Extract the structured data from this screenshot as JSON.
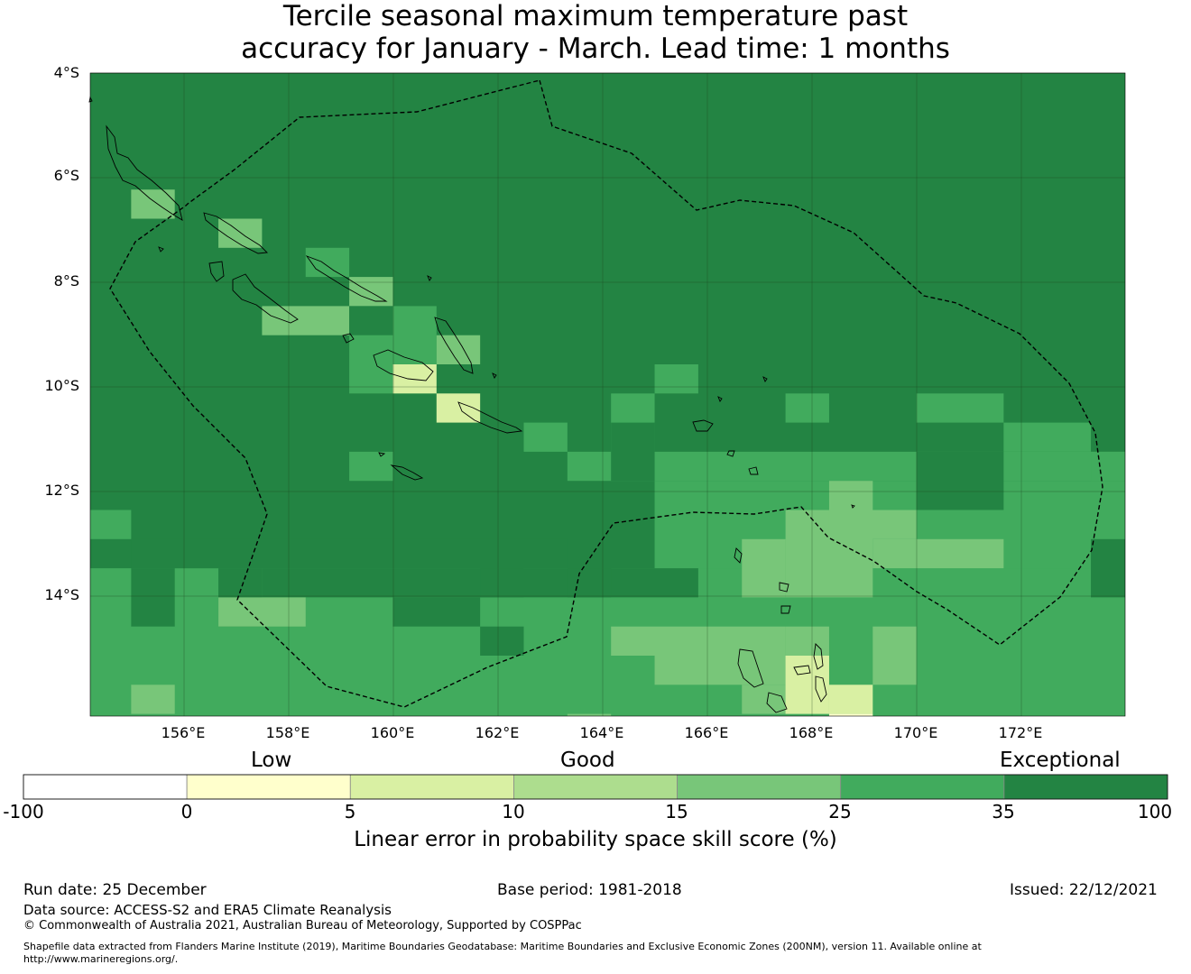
{
  "title": {
    "line1": "Tercile seasonal maximum temperature past",
    "line2": "accuracy for January - March. Lead time: 1 months"
  },
  "map": {
    "lat_labels": [
      "4°S",
      "6°S",
      "8°S",
      "10°S",
      "12°S",
      "14°S"
    ],
    "lon_labels": [
      "156°E",
      "158°E",
      "160°E",
      "162°E",
      "164°E",
      "166°E",
      "168°E",
      "170°E",
      "172°E"
    ],
    "lon_range": [
      154.2,
      174.0
    ],
    "lat_range": [
      -4.0,
      -16.3
    ],
    "colors": {
      "ocean_default": "#238443",
      "land_outline": "#000000",
      "eez_line": "#000000",
      "grid": "#1a3d1a"
    }
  },
  "categories": {
    "low": "Low",
    "good": "Good",
    "exceptional": "Exceptional"
  },
  "colorbar": {
    "ticks": [
      "-100",
      "0",
      "5",
      "10",
      "15",
      "25",
      "35",
      "100"
    ],
    "colors": [
      "#ffffff",
      "#ffffcc",
      "#d9f0a3",
      "#addd8e",
      "#78c679",
      "#41ab5d",
      "#238443"
    ],
    "label": "Linear error in probability space skill score (%)"
  },
  "footer": {
    "run_date": "Run date: 25 December",
    "base_period": "Base period: 1981-2018",
    "issued": "Issued: 22/12/2021",
    "data_source": "Data source: ACCESS-S2 and ERA5 Climate Reanalysis",
    "copyright": "© Commonwealth of Australia 2021, Australian Bureau of Meteorology, Supported by COSPPac",
    "shapefile_line1": "Shapefile data extracted from Flanders Marine Institute (2019), Maritime Boundaries Geodatabase: Maritime Boundaries and Exclusive Economic Zones (200NM), version 11. Available online at",
    "shapefile_line2": "http://www.marineregions.org/."
  }
}
